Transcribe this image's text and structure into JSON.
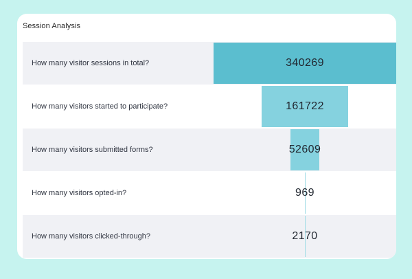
{
  "panel": {
    "title": "Session Analysis"
  },
  "colors": {
    "page_background": "#c6f3ef",
    "card_background": "#ffffff",
    "row_shaded": "#f0f1f5",
    "bar_primary": "#5bbecf",
    "bar_secondary": "#85d2df"
  },
  "funnel": {
    "max_value": 340269,
    "rows": [
      {
        "label": "How many visitor sessions in total?",
        "value": "340269",
        "amount": 340269
      },
      {
        "label": "How many visitors started to participate?",
        "value": "161722",
        "amount": 161722
      },
      {
        "label": "How many visitors submitted forms?",
        "value": "52609",
        "amount": 52609
      },
      {
        "label": "How many visitors opted-in?",
        "value": "969",
        "amount": 969
      },
      {
        "label": "How many visitors clicked-through?",
        "value": "2170",
        "amount": 2170
      }
    ]
  }
}
